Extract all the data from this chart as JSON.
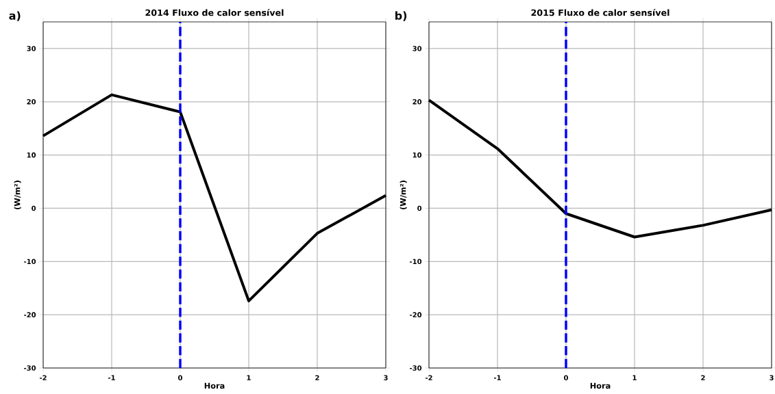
{
  "chart_data": [
    {
      "type": "line",
      "title": "2014 Fluxo de calor sensível",
      "xlabel": "Hora",
      "ylabel": "(W/m²)",
      "annotations": [
        "a)"
      ],
      "x": [
        -2,
        -1,
        0,
        1,
        2,
        3
      ],
      "series": [
        {
          "color": "#000000",
          "values": [
            13.6,
            21.3,
            18.1,
            -17.4,
            -4.7,
            2.4
          ]
        }
      ],
      "xlim": [
        -2,
        3
      ],
      "ylim": [
        -30,
        35
      ],
      "xticks": [
        -2,
        -1,
        0,
        1,
        2,
        3
      ],
      "yticks": [
        -30,
        -20,
        -10,
        0,
        10,
        20,
        30
      ],
      "grid": true,
      "ref_lines": [
        {
          "axis": "x",
          "value": 0,
          "color": "#0000ff",
          "line_style": "dashed"
        }
      ]
    },
    {
      "type": "line",
      "title": "2015 Fluxo de calor sensível",
      "xlabel": "Hora",
      "ylabel": "(W/m²)",
      "annotations": [
        "b)"
      ],
      "x": [
        -2,
        -1,
        0,
        1,
        2,
        3
      ],
      "series": [
        {
          "color": "#000000",
          "values": [
            20.3,
            11.2,
            -1.0,
            -5.4,
            -3.2,
            -0.3
          ]
        }
      ],
      "xlim": [
        -2,
        3
      ],
      "ylim": [
        -30,
        35
      ],
      "xticks": [
        -2,
        -1,
        0,
        1,
        2,
        3
      ],
      "yticks": [
        -30,
        -20,
        -10,
        0,
        10,
        20,
        30
      ],
      "grid": true,
      "ref_lines": [
        {
          "axis": "x",
          "value": 0,
          "color": "#0000ff",
          "line_style": "dashed"
        }
      ]
    }
  ]
}
